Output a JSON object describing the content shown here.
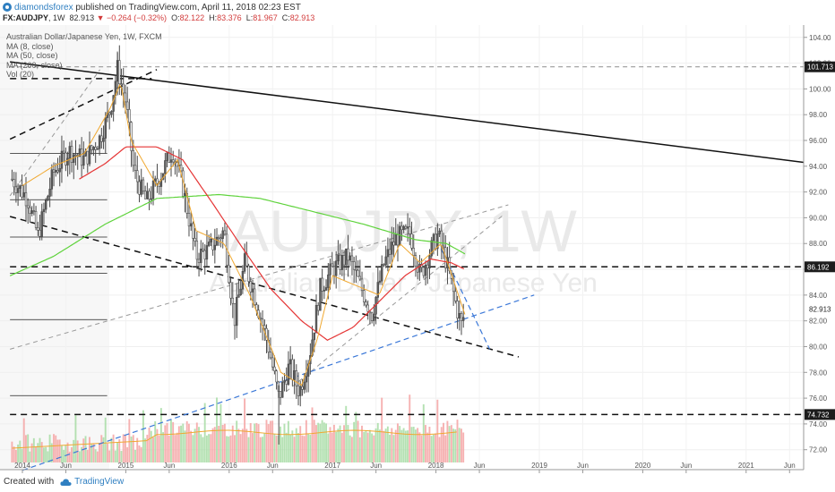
{
  "header": {
    "author": "diamondsforex",
    "published_text": "published on TradingView.com, April 11, 2018 02:23 EST",
    "symbol": "FX:AUDJPY",
    "interval": "1W",
    "last": "82.913",
    "change": "▼ −0.264 (−0.32%)",
    "open_label": "O:",
    "open": "82.122",
    "high_label": "H:",
    "high": "83.376",
    "low_label": "L:",
    "low": "81.967",
    "close_label": "C:",
    "close": "82.913"
  },
  "legend": {
    "title": "Australian Dollar/Japanese Yen, 1W, FXCM",
    "items": [
      "MA (8, close)",
      "MA (50, close)",
      "MA (200, close)",
      "Vol (20)"
    ]
  },
  "watermark": {
    "main": "AUDJPY, 1W",
    "sub": "Australian Dollar / Japanese Yen"
  },
  "footer": {
    "created": "Created with",
    "brand": "TradingView"
  },
  "colors": {
    "up": "#5e5e5e",
    "down": "#f5f5f5",
    "ma8": "#f0a830",
    "ma50": "#e53535",
    "ma200": "#5fd33c",
    "vol_up": "#f4a3a3",
    "vol_down": "#a7dca5",
    "dash_blue": "#3b78d8",
    "price_label": "#1c1c1c",
    "trendline": "#111111"
  },
  "chart_data": {
    "type": "candlestick",
    "title": "Australian Dollar/Japanese Yen, 1W, FXCM",
    "y_range": [
      70.8,
      104.4
    ],
    "y_ticks": [
      "104.00",
      "102.00",
      "100.00",
      "98.00",
      "96.00",
      "94.00",
      "92.00",
      "90.00",
      "88.00",
      "86.00",
      "84.00",
      "82.00",
      "80.00",
      "78.00",
      "76.00",
      "74.00",
      "72.00"
    ],
    "x_ticks": [
      "2014",
      "Jun",
      "2015",
      "Jun",
      "2016",
      "Jun",
      "2017",
      "Jun",
      "2018",
      "Jun",
      "2019",
      "Jun",
      "2020",
      "Jun",
      "2021",
      "Jun"
    ],
    "price_labels": [
      {
        "text": "101.713",
        "value": 101.713
      },
      {
        "text": "86.192",
        "value": 86.192
      },
      {
        "text": "82.913",
        "value": 82.913
      },
      {
        "text": "74.732",
        "value": 74.732
      }
    ],
    "close_path": [
      {
        "t": 2013.9,
        "v": 93.0
      },
      {
        "t": 2014.05,
        "v": 91.5
      },
      {
        "t": 2014.15,
        "v": 88.6
      },
      {
        "t": 2014.3,
        "v": 93.5
      },
      {
        "t": 2014.45,
        "v": 95.2
      },
      {
        "t": 2014.6,
        "v": 94.5
      },
      {
        "t": 2014.75,
        "v": 96.2
      },
      {
        "t": 2014.85,
        "v": 98.4
      },
      {
        "t": 2014.92,
        "v": 101.6
      },
      {
        "t": 2015.0,
        "v": 99.0
      },
      {
        "t": 2015.08,
        "v": 93.5
      },
      {
        "t": 2015.2,
        "v": 91.2
      },
      {
        "t": 2015.35,
        "v": 93.5
      },
      {
        "t": 2015.45,
        "v": 95.3
      },
      {
        "t": 2015.55,
        "v": 92.5
      },
      {
        "t": 2015.68,
        "v": 87.0
      },
      {
        "t": 2015.8,
        "v": 87.5
      },
      {
        "t": 2015.95,
        "v": 89.0
      },
      {
        "t": 2016.05,
        "v": 82.0
      },
      {
        "t": 2016.15,
        "v": 86.5
      },
      {
        "t": 2016.28,
        "v": 83.0
      },
      {
        "t": 2016.38,
        "v": 80.0
      },
      {
        "t": 2016.48,
        "v": 76.0
      },
      {
        "t": 2016.58,
        "v": 78.5
      },
      {
        "t": 2016.68,
        "v": 76.5
      },
      {
        "t": 2016.78,
        "v": 79.5
      },
      {
        "t": 2016.88,
        "v": 84.5
      },
      {
        "t": 2017.0,
        "v": 86.0
      },
      {
        "t": 2017.15,
        "v": 87.0
      },
      {
        "t": 2017.28,
        "v": 84.5
      },
      {
        "t": 2017.38,
        "v": 82.5
      },
      {
        "t": 2017.5,
        "v": 86.5
      },
      {
        "t": 2017.62,
        "v": 88.5
      },
      {
        "t": 2017.75,
        "v": 88.8
      },
      {
        "t": 2017.85,
        "v": 85.5
      },
      {
        "t": 2017.95,
        "v": 87.5
      },
      {
        "t": 2018.02,
        "v": 88.7
      },
      {
        "t": 2018.12,
        "v": 86.0
      },
      {
        "t": 2018.2,
        "v": 83.0
      },
      {
        "t": 2018.25,
        "v": 81.6
      },
      {
        "t": 2018.28,
        "v": 82.9
      }
    ],
    "ma8": [
      {
        "t": 2014.0,
        "v": 92.5
      },
      {
        "t": 2014.3,
        "v": 94.0
      },
      {
        "t": 2014.6,
        "v": 95.0
      },
      {
        "t": 2014.85,
        "v": 98.5
      },
      {
        "t": 2014.95,
        "v": 100.5
      },
      {
        "t": 2015.05,
        "v": 96.0
      },
      {
        "t": 2015.3,
        "v": 92.5
      },
      {
        "t": 2015.5,
        "v": 94.5
      },
      {
        "t": 2015.68,
        "v": 89.0
      },
      {
        "t": 2015.95,
        "v": 88.0
      },
      {
        "t": 2016.2,
        "v": 84.0
      },
      {
        "t": 2016.5,
        "v": 78.0
      },
      {
        "t": 2016.7,
        "v": 77.0
      },
      {
        "t": 2016.85,
        "v": 80.5
      },
      {
        "t": 2017.0,
        "v": 85.5
      },
      {
        "t": 2017.3,
        "v": 84.5
      },
      {
        "t": 2017.45,
        "v": 84.0
      },
      {
        "t": 2017.65,
        "v": 88.0
      },
      {
        "t": 2017.85,
        "v": 86.5
      },
      {
        "t": 2018.05,
        "v": 88.0
      },
      {
        "t": 2018.28,
        "v": 82.5
      }
    ],
    "ma50": [
      {
        "t": 2014.55,
        "v": 93.0
      },
      {
        "t": 2014.8,
        "v": 94.2
      },
      {
        "t": 2015.0,
        "v": 95.5
      },
      {
        "t": 2015.3,
        "v": 95.5
      },
      {
        "t": 2015.55,
        "v": 94.5
      },
      {
        "t": 2015.85,
        "v": 91.0
      },
      {
        "t": 2016.1,
        "v": 88.0
      },
      {
        "t": 2016.4,
        "v": 84.5
      },
      {
        "t": 2016.7,
        "v": 82.0
      },
      {
        "t": 2016.95,
        "v": 80.5
      },
      {
        "t": 2017.2,
        "v": 81.5
      },
      {
        "t": 2017.45,
        "v": 83.5
      },
      {
        "t": 2017.7,
        "v": 85.5
      },
      {
        "t": 2017.95,
        "v": 86.8
      },
      {
        "t": 2018.15,
        "v": 86.5
      },
      {
        "t": 2018.28,
        "v": 86.0
      }
    ],
    "ma200": [
      {
        "t": 2013.88,
        "v": 85.5
      },
      {
        "t": 2014.3,
        "v": 87.0
      },
      {
        "t": 2014.8,
        "v": 89.5
      },
      {
        "t": 2015.3,
        "v": 91.5
      },
      {
        "t": 2015.9,
        "v": 91.8
      },
      {
        "t": 2016.3,
        "v": 91.5
      },
      {
        "t": 2016.8,
        "v": 90.5
      },
      {
        "t": 2017.3,
        "v": 89.5
      },
      {
        "t": 2017.8,
        "v": 88.3
      },
      {
        "t": 2018.1,
        "v": 88.0
      },
      {
        "t": 2018.28,
        "v": 87.2
      }
    ],
    "horizontal_levels": [
      {
        "value": 101.713,
        "style": "dashed-gray",
        "from": 2013.88,
        "to": 2021.6
      },
      {
        "value": 100.8,
        "style": "dashed-black",
        "from": 2013.88,
        "to": 2015.25
      },
      {
        "value": 86.192,
        "style": "dashed-black",
        "from": 2013.88,
        "to": 2021.6
      },
      {
        "value": 74.732,
        "style": "dashed-black",
        "from": 2013.88,
        "to": 2021.6
      },
      {
        "value": 95.0,
        "style": "solid-thin",
        "from": 2013.88,
        "to": 2014.82
      },
      {
        "value": 91.4,
        "style": "solid-thin",
        "from": 2013.88,
        "to": 2014.82
      },
      {
        "value": 88.5,
        "style": "solid-thin",
        "from": 2013.88,
        "to": 2014.82
      },
      {
        "value": 85.7,
        "style": "solid-thin",
        "from": 2013.88,
        "to": 2014.82
      },
      {
        "value": 82.1,
        "style": "solid-thin",
        "from": 2013.88,
        "to": 2014.82
      },
      {
        "value": 76.2,
        "style": "solid-thin",
        "from": 2013.88,
        "to": 2014.82
      }
    ],
    "trendlines": [
      {
        "from": [
          2013.88,
          102.1
        ],
        "to": [
          2021.6,
          94.3
        ],
        "style": "solid-black"
      },
      {
        "from": [
          2013.88,
          96.1
        ],
        "to": [
          2015.3,
          101.5
        ],
        "style": "dashed-black"
      },
      {
        "from": [
          2013.88,
          90.1
        ],
        "to": [
          2018.8,
          79.2
        ],
        "style": "dashed-black"
      },
      {
        "from": [
          2013.88,
          79.8
        ],
        "to": [
          2018.7,
          91.0
        ],
        "style": "dashed-gray"
      },
      {
        "from": [
          2013.88,
          91.7
        ],
        "to": [
          2014.75,
          101.5
        ],
        "style": "dashed-gray"
      },
      {
        "from": [
          2016.55,
          76.5
        ],
        "to": [
          2018.65,
          90.2
        ],
        "style": "dashed-gray"
      },
      {
        "from": [
          2014.0,
          70.4
        ],
        "to": [
          2018.95,
          84.0
        ],
        "style": "dashed-blue"
      },
      {
        "from": [
          2018.05,
          87.6
        ],
        "to": [
          2018.52,
          79.8
        ],
        "style": "dashed-blue"
      }
    ],
    "volume": {
      "max": 100,
      "note": "relative weekly volume bars with 20-period MA"
    }
  }
}
